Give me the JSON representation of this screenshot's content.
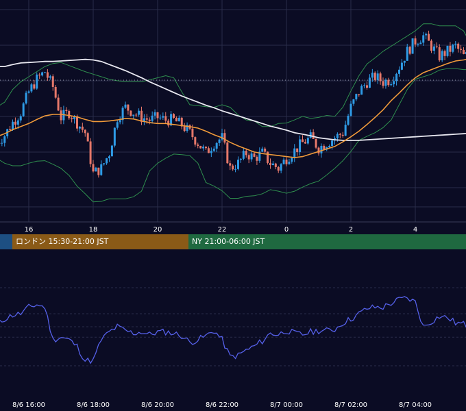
{
  "sessions": [
    {
      "name": "tokyo",
      "label": "",
      "color": "#1d4f82"
    },
    {
      "name": "london",
      "label": "ロンドン 15:30-21:00 JST",
      "color": "#8a5a17"
    },
    {
      "name": "ny",
      "label": "NY 21:00-06:00 JST",
      "color": "#1f6940"
    }
  ],
  "colors": {
    "background": "#0b0c24",
    "grid": "#2a2d4a",
    "up_candle": "#2f9be6",
    "down_candle": "#e6786a",
    "sma_short": "#f09a3a",
    "sma_long": "#e8e8f0",
    "bollinger": "#2f8f4e",
    "indicator_line": "#5560e8",
    "tick_text": "#ffffff"
  },
  "chart_data": [
    {
      "type": "candlestick",
      "title": "",
      "x_ticks": [
        "16",
        "18",
        "20",
        "22",
        "0",
        "2",
        "4"
      ],
      "hours": [
        15.0,
        15.25,
        15.5,
        15.75,
        16.0,
        16.25,
        16.5,
        16.75,
        17.0,
        17.25,
        17.5,
        17.75,
        18.0,
        18.25,
        18.5,
        18.75,
        19.0,
        19.25,
        19.5,
        19.75,
        20.0,
        20.25,
        20.5,
        20.75,
        21.0,
        21.25,
        21.5,
        21.75,
        22.0,
        22.25,
        22.5,
        22.75,
        23.0,
        23.25,
        23.5,
        23.75,
        24.0,
        24.25,
        24.5,
        24.75,
        25.0,
        25.25,
        25.5,
        25.75,
        26.0,
        26.25,
        26.5,
        26.75,
        27.0,
        27.25,
        27.5,
        27.75,
        28.0,
        28.25,
        28.5,
        28.75,
        29.0,
        29.25,
        29.5,
        29.75,
        30.0
      ],
      "close": [
        35,
        36.5,
        39,
        41,
        45,
        47.5,
        49,
        46,
        40,
        41,
        39,
        37,
        29,
        30,
        33,
        40,
        42,
        41,
        40,
        39.5,
        40,
        39.5,
        39.5,
        38.5,
        37,
        35,
        33,
        35,
        36,
        30,
        31,
        33,
        32,
        33,
        31,
        30,
        32,
        33.5,
        35,
        36,
        34,
        35,
        36,
        37,
        42,
        45,
        47,
        48,
        47,
        47.5,
        50,
        53,
        55,
        56,
        54,
        52,
        53,
        54,
        52,
        52.5,
        52
      ],
      "sma_short": [
        36.2,
        36.8,
        37.6,
        38.2,
        38.8,
        39.6,
        40.3,
        40.6,
        40.6,
        40.4,
        40.1,
        39.6,
        39.2,
        39.2,
        39.3,
        39.5,
        39.8,
        39.7,
        39.3,
        39.0,
        38.8,
        38.8,
        38.6,
        38.4,
        38.2,
        37.9,
        37.3,
        36.6,
        36.0,
        35.1,
        34.4,
        33.8,
        33.2,
        32.9,
        32.7,
        32.5,
        32.3,
        32.1,
        32.3,
        32.8,
        33.3,
        33.8,
        34.3,
        35.2,
        36.2,
        37.3,
        38.6,
        40.0,
        41.5,
        43.3,
        44.8,
        46.4,
        47.8,
        48.8,
        49.4,
        50.0,
        50.6,
        51.1,
        51.3,
        51.6,
        51.8
      ],
      "sma_long": [
        50,
        50,
        50.4,
        50.7,
        50.8,
        50.9,
        51.0,
        51.0,
        51.1,
        51.2,
        51.3,
        51.4,
        51.3,
        51.0,
        50.4,
        49.8,
        49.2,
        48.5,
        47.8,
        47.0,
        46.3,
        45.6,
        44.9,
        44.2,
        43.6,
        43.0,
        42.4,
        41.9,
        41.3,
        40.8,
        40.3,
        39.8,
        39.3,
        38.8,
        38.3,
        37.9,
        37.5,
        37.0,
        36.7,
        36.4,
        36.0,
        35.8,
        35.6,
        35.5,
        35.5,
        35.5,
        35.6,
        35.7,
        35.8,
        35.9,
        36.0,
        36.1,
        36.2,
        36.3,
        36.4,
        36.5,
        36.6,
        36.7,
        36.8,
        36.9,
        37.0
      ],
      "bb_upper": [
        42,
        43,
        45.5,
        47,
        48,
        49,
        50,
        50.6,
        50.8,
        50.2,
        49.6,
        49,
        48.5,
        48,
        47.5,
        47.2,
        47,
        47,
        47,
        47.4,
        47.8,
        48.2,
        47.8,
        45,
        42.5,
        42.3,
        42.1,
        42,
        42.5,
        42,
        40.5,
        39.5,
        39.3,
        38.2,
        38.2,
        38.8,
        38.9,
        39.5,
        40.2,
        39.8,
        40,
        40.4,
        40.2,
        42,
        45.2,
        48.2,
        50.5,
        51.7,
        53,
        54,
        55,
        56,
        57,
        58.4,
        58.4,
        58,
        58,
        58,
        57,
        54,
        52
      ],
      "bb_lower": [
        32,
        31,
        30.5,
        30.5,
        31,
        31.4,
        31.5,
        30.8,
        30,
        28.6,
        26.5,
        25,
        23.4,
        23.5,
        24,
        24,
        24,
        24.4,
        25.5,
        29.5,
        31,
        32,
        32.8,
        32.7,
        32.5,
        31,
        27.2,
        26.5,
        25.6,
        24.1,
        24.1,
        24.5,
        24.6,
        25,
        25.8,
        25.5,
        25.1,
        25.5,
        26.3,
        27,
        27.5,
        28.7,
        30,
        31.5,
        33.3,
        35.5,
        36.3,
        37,
        38,
        39.5,
        42.5,
        45.5,
        47.5,
        48,
        48.5,
        49.3,
        49.6,
        49.6,
        49.4,
        49.4,
        49.5
      ],
      "ylim": [
        20,
        62
      ]
    },
    {
      "type": "line",
      "title": "",
      "x_tick_labels": [
        "8/6 16:00",
        "8/6 18:00",
        "8/6 20:00",
        "8/6 22:00",
        "8/7 00:00",
        "8/7 02:00",
        "8/7 04:00"
      ],
      "x_tick_hours": [
        16,
        18,
        20,
        22,
        24,
        26,
        28
      ],
      "x": [
        15.0,
        15.25,
        15.5,
        15.75,
        16.0,
        16.25,
        16.5,
        16.75,
        17.0,
        17.25,
        17.5,
        17.75,
        18.0,
        18.25,
        18.5,
        18.75,
        19.0,
        19.25,
        19.5,
        19.75,
        20.0,
        20.25,
        20.5,
        20.75,
        21.0,
        21.25,
        21.5,
        21.75,
        22.0,
        22.25,
        22.5,
        22.75,
        23.0,
        23.25,
        23.5,
        23.75,
        24.0,
        24.25,
        24.5,
        24.75,
        25.0,
        25.25,
        25.5,
        25.75,
        26.0,
        26.25,
        26.5,
        26.75,
        27.0,
        27.25,
        27.5,
        27.75,
        28.0,
        28.25,
        28.5,
        28.75,
        29.0,
        29.25,
        29.5,
        29.75,
        30.0
      ],
      "values": [
        52,
        56,
        59,
        60,
        65,
        67,
        65,
        40,
        42,
        40,
        35,
        24,
        24,
        40,
        46,
        50,
        47,
        45,
        46,
        44,
        46,
        46,
        45,
        43,
        38,
        40,
        43,
        47,
        40,
        27,
        28,
        32,
        35,
        39,
        45,
        44,
        47,
        45,
        44,
        46,
        47,
        47,
        48,
        53,
        56,
        60,
        64,
        65,
        65,
        68,
        71,
        72,
        69,
        50,
        54,
        58,
        57,
        53,
        52,
        49,
        49
      ],
      "ylim": [
        0,
        100
      ]
    }
  ]
}
